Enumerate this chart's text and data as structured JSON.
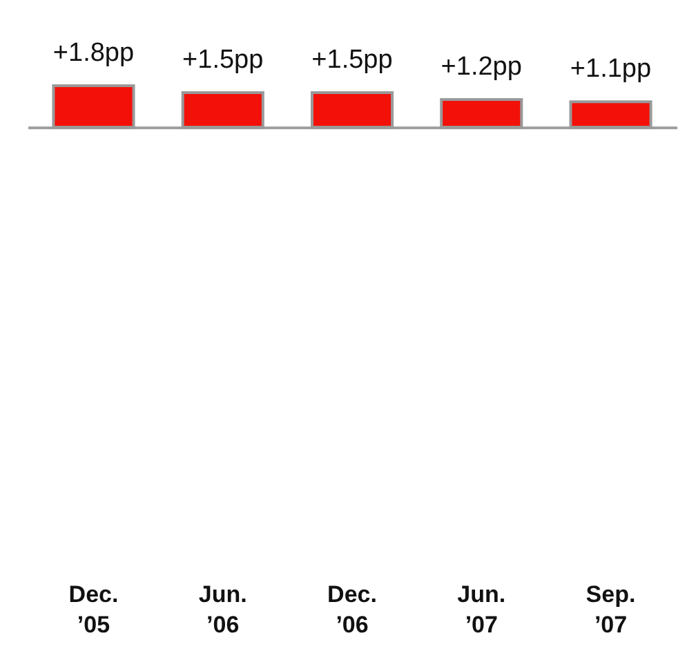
{
  "chart_data": {
    "type": "bar",
    "categories": [
      "Dec.\n’05",
      "Jun.\n’06",
      "Dec.\n’06",
      "Jun.\n’07",
      "Sep.\n’07"
    ],
    "values": [
      1.8,
      1.5,
      1.5,
      1.2,
      1.1
    ],
    "value_labels": [
      "+1.8pp",
      "+1.5pp",
      "+1.5pp",
      "+1.2pp",
      "+1.1pp"
    ],
    "color": "#f21008"
  }
}
